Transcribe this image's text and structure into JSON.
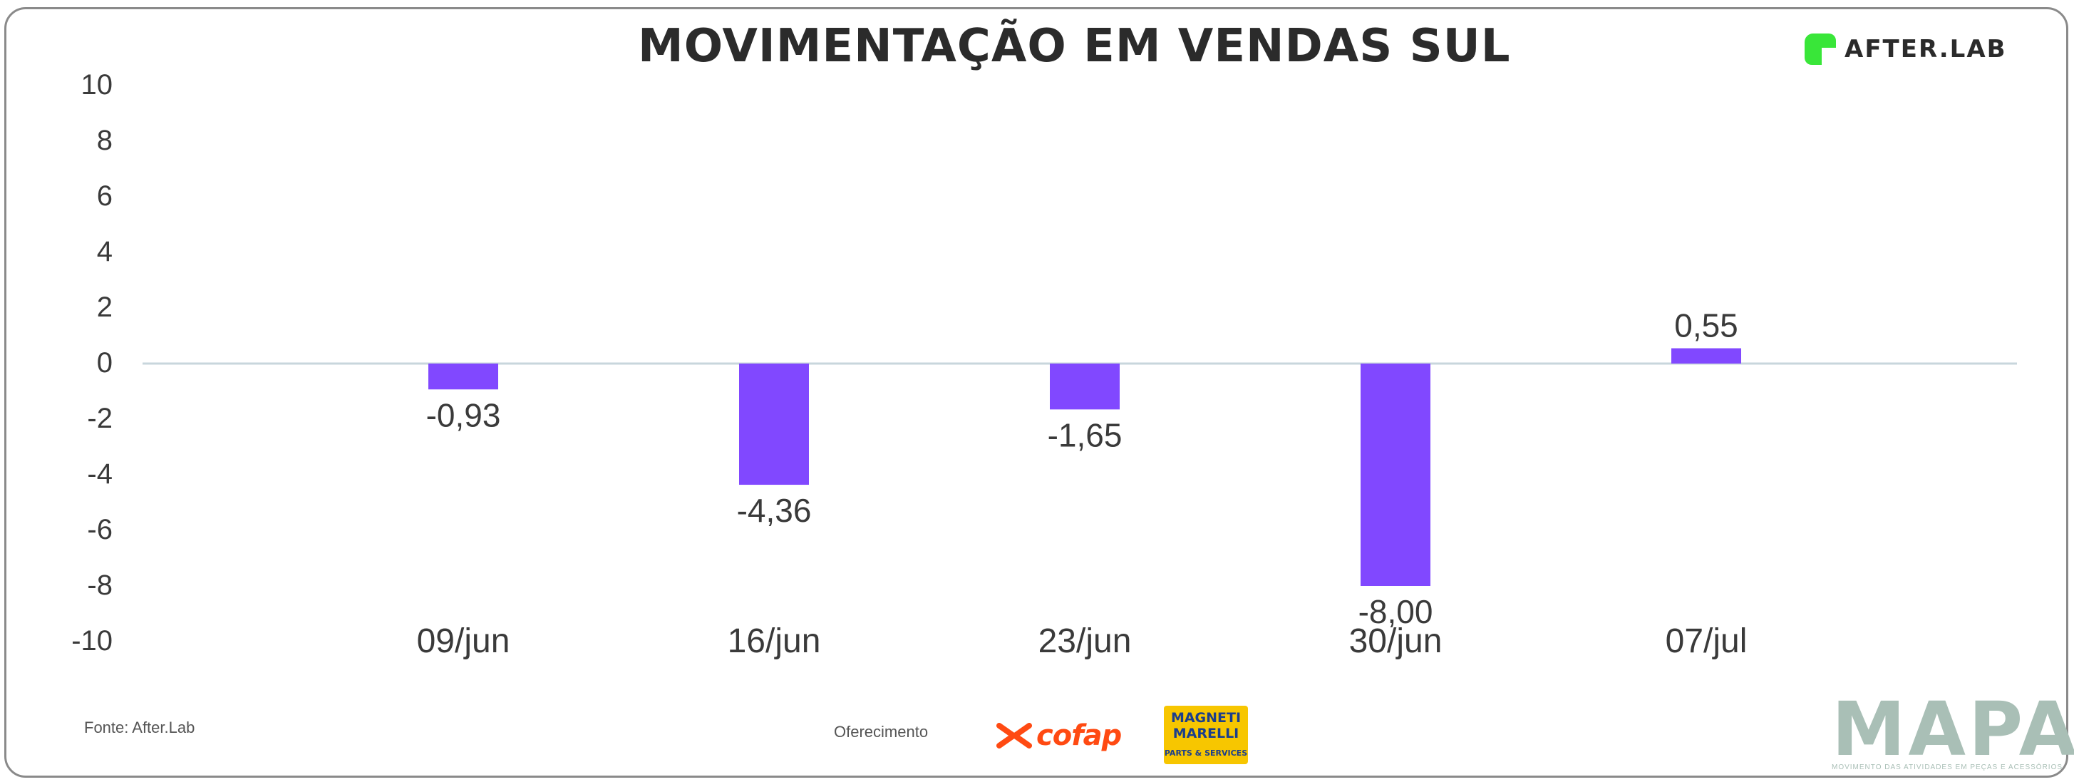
{
  "header": {
    "title": "MOVIMENTAÇÃO EM VENDAS SUL",
    "brand": "AFTER.LAB"
  },
  "footer": {
    "source": "Fonte: After.Lab",
    "sponsor": "Oferecimento",
    "sponsor_cofap": "cofap",
    "sponsor_marelli": "MAGNETI MARELLI",
    "sponsor_marelli_sub": "PARTS & SERVICES",
    "mapa": "MAPA",
    "mapa_tagline": "MOVIMENTO DAS ATIVIDADES EM PEÇAS E ACESSÓRIOS"
  },
  "colors": {
    "bar": "#8148ff",
    "zero_line": "#c8d6dc",
    "text": "#3a3a3a",
    "brand_green": "#39e639",
    "cofap": "#ff4a12",
    "marelli_yellow": "#f7c600",
    "marelli_blue": "#1b3e8c",
    "mapa": "#a9bfb6"
  },
  "chart_data": {
    "type": "bar",
    "categories": [
      "09/jun",
      "16/jun",
      "23/jun",
      "30/jun",
      "07/jul"
    ],
    "values": [
      -0.93,
      -4.36,
      -1.65,
      -8.0,
      0.55
    ],
    "data_labels": [
      "-0,93",
      "-4,36",
      "-1,65",
      "-8,00",
      "0,55"
    ],
    "y_ticks": [
      10,
      8,
      6,
      4,
      2,
      0,
      -2,
      -4,
      -6,
      -8,
      -10
    ],
    "ylim": [
      -10,
      10
    ],
    "grid": false,
    "legend": "none"
  }
}
